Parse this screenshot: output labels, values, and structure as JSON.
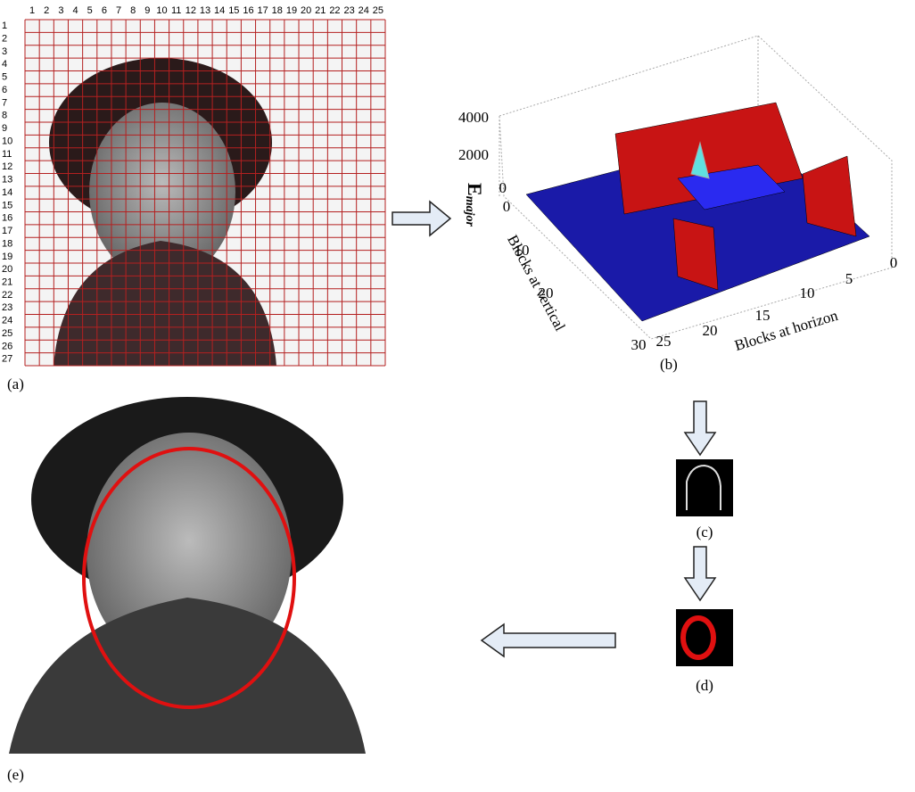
{
  "panel_a": {
    "label": "(a)",
    "column_numbers": [
      1,
      2,
      3,
      4,
      5,
      6,
      7,
      8,
      9,
      10,
      11,
      12,
      13,
      14,
      15,
      16,
      17,
      18,
      19,
      20,
      21,
      22,
      23,
      24,
      25
    ],
    "row_numbers": [
      1,
      2,
      3,
      4,
      5,
      6,
      7,
      8,
      9,
      10,
      11,
      12,
      13,
      14,
      15,
      16,
      17,
      18,
      19,
      20,
      21,
      22,
      23,
      24,
      25,
      26,
      27
    ]
  },
  "panel_b": {
    "label": "(b)",
    "z_axis_label": "E",
    "z_axis_subscript": "major",
    "z_ticks": [
      4000,
      2000,
      0
    ],
    "vertical_axis_label": "Blocks at vertical",
    "vertical_ticks": [
      0,
      10,
      20,
      30
    ],
    "horizontal_axis_label": "Blocks at horizon",
    "horizontal_ticks": [
      25,
      20,
      15,
      10,
      5,
      0
    ]
  },
  "panel_c": {
    "label": "(c)"
  },
  "panel_d": {
    "label": "(d)"
  },
  "panel_e": {
    "label": "(e)"
  }
}
